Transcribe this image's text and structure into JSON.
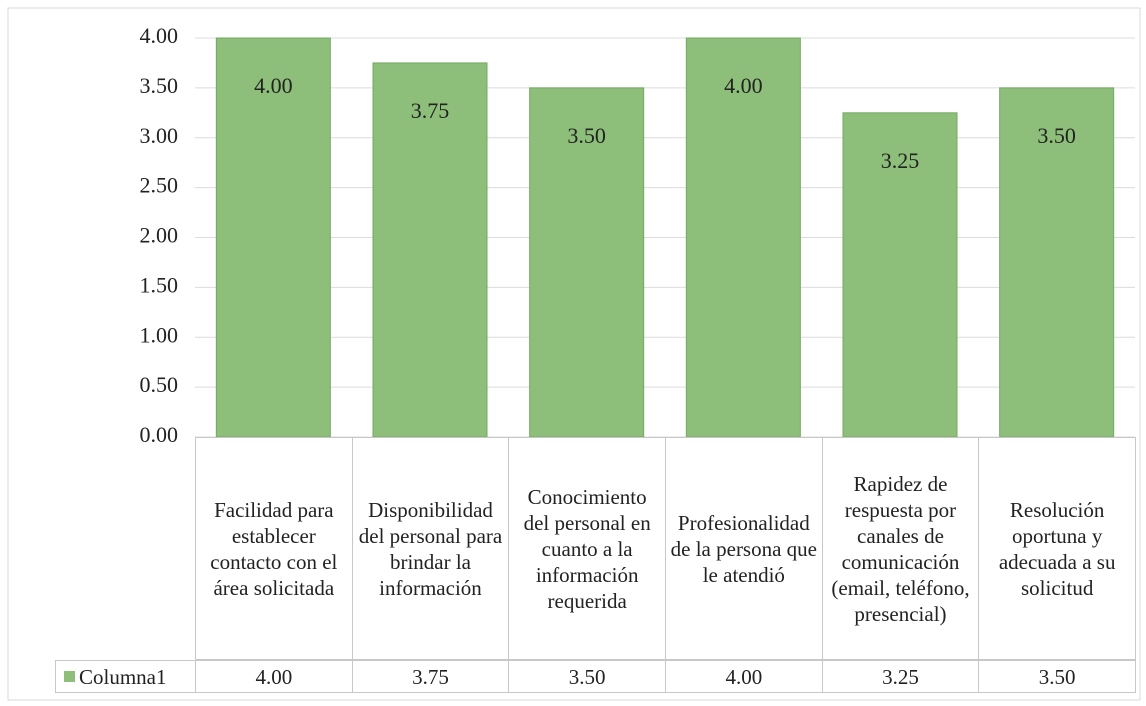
{
  "chart_data": {
    "type": "bar",
    "categories": [
      "Facilidad para establecer contacto con el área solicitada",
      "Disponibilidad del personal para brindar la información",
      "Conocimiento del personal en cuanto a la información requerida",
      "Profesionalidad de la persona que le atendió",
      "Rapidez de respuesta por canales de comunicación (email, teléfono, presencial)",
      "Resolución oportuna y adecuada a su solicitud"
    ],
    "series": [
      {
        "name": "Columna1",
        "color": "#8dbf7a",
        "values": [
          4,
          3.75,
          3.5,
          4,
          3.25,
          3.5
        ],
        "value_labels": [
          "4.00",
          "3.75",
          "3.50",
          "4.00",
          "3.25",
          "3.50"
        ]
      }
    ],
    "ylim": [
      0,
      4
    ],
    "yticks": [
      {
        "value": 0,
        "label": "0.00"
      },
      {
        "value": 0.5,
        "label": "0.50"
      },
      {
        "value": 1,
        "label": "1.00"
      },
      {
        "value": 1.5,
        "label": "1.50"
      },
      {
        "value": 2,
        "label": "2.00"
      },
      {
        "value": 2.5,
        "label": "2.50"
      },
      {
        "value": 3,
        "label": "3.00"
      },
      {
        "value": 3.5,
        "label": "3.50"
      },
      {
        "value": 4,
        "label": "4.00"
      }
    ],
    "grid": true
  }
}
